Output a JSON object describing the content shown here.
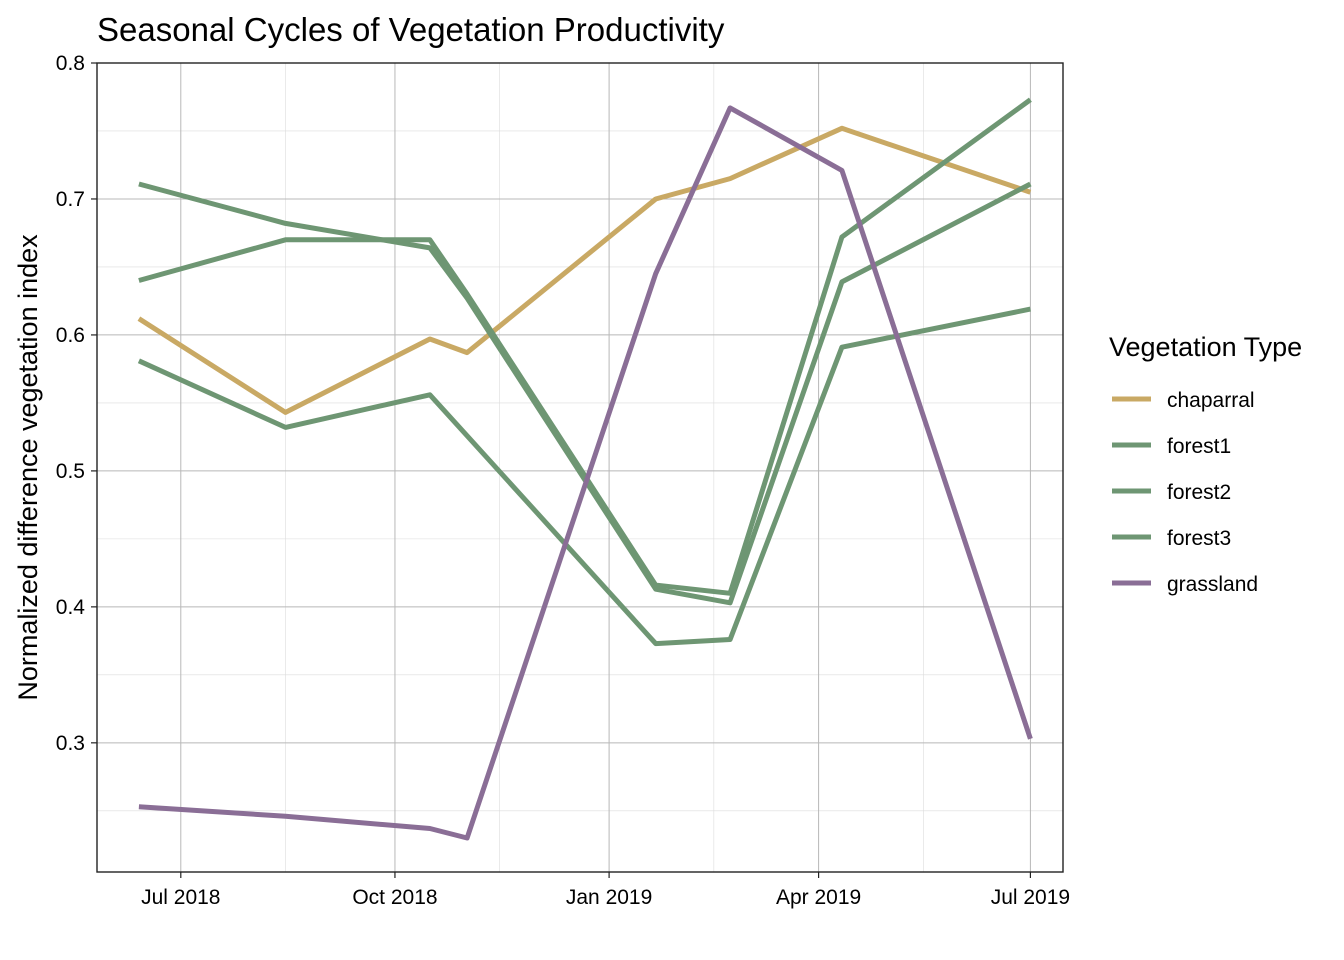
{
  "chart_data": {
    "type": "line",
    "title": "Seasonal Cycles of Vegetation Productivity",
    "xlabel": "",
    "ylabel": "Normalized difference vegetation index",
    "x_axis_type": "date",
    "xlim": [
      "2018-05-26",
      "2019-07-15"
    ],
    "ylim": [
      0.205,
      0.8
    ],
    "x_ticks": [
      {
        "date": "2018-07-01",
        "label": "Jul 2018"
      },
      {
        "date": "2018-10-01",
        "label": "Oct 2018"
      },
      {
        "date": "2019-01-01",
        "label": "Jan 2019"
      },
      {
        "date": "2019-04-01",
        "label": "Apr 2019"
      },
      {
        "date": "2019-07-01",
        "label": "Jul 2019"
      }
    ],
    "x_minor_ticks": [
      "2018-08-15",
      "2018-11-15",
      "2019-02-15",
      "2019-05-16"
    ],
    "y_ticks": [
      0.3,
      0.4,
      0.5,
      0.6,
      0.7,
      0.8
    ],
    "y_minor_ticks": [
      0.25,
      0.35,
      0.45,
      0.55,
      0.65,
      0.75
    ],
    "grid": true,
    "legend": {
      "title": "Vegetation Type",
      "position": "right"
    },
    "series": [
      {
        "name": "chaparral",
        "color": "#c9a964",
        "points": [
          {
            "x": "2018-06-13",
            "y": 0.612
          },
          {
            "x": "2018-08-15",
            "y": 0.543
          },
          {
            "x": "2018-10-16",
            "y": 0.597
          },
          {
            "x": "2018-11-01",
            "y": 0.587
          },
          {
            "x": "2019-01-21",
            "y": 0.7
          },
          {
            "x": "2019-02-22",
            "y": 0.715
          },
          {
            "x": "2019-04-11",
            "y": 0.752
          },
          {
            "x": "2019-07-01",
            "y": 0.705
          }
        ]
      },
      {
        "name": "forest1",
        "color": "#6e9673",
        "points": [
          {
            "x": "2018-06-13",
            "y": 0.711
          },
          {
            "x": "2018-08-15",
            "y": 0.682
          },
          {
            "x": "2018-10-16",
            "y": 0.664
          },
          {
            "x": "2018-11-01",
            "y": 0.627
          },
          {
            "x": "2019-01-21",
            "y": 0.413
          },
          {
            "x": "2019-02-22",
            "y": 0.403
          },
          {
            "x": "2019-04-11",
            "y": 0.639
          },
          {
            "x": "2019-07-01",
            "y": 0.711
          }
        ]
      },
      {
        "name": "forest2",
        "color": "#6e9673",
        "points": [
          {
            "x": "2018-06-13",
            "y": 0.64
          },
          {
            "x": "2018-08-15",
            "y": 0.67
          },
          {
            "x": "2018-10-16",
            "y": 0.67
          },
          {
            "x": "2018-11-01",
            "y": 0.63
          },
          {
            "x": "2019-01-21",
            "y": 0.416
          },
          {
            "x": "2019-02-22",
            "y": 0.41
          },
          {
            "x": "2019-04-11",
            "y": 0.672
          },
          {
            "x": "2019-07-01",
            "y": 0.773
          }
        ]
      },
      {
        "name": "forest3",
        "color": "#6e9673",
        "points": [
          {
            "x": "2018-06-13",
            "y": 0.581
          },
          {
            "x": "2018-08-15",
            "y": 0.532
          },
          {
            "x": "2018-10-16",
            "y": 0.556
          },
          {
            "x": "2019-01-21",
            "y": 0.373
          },
          {
            "x": "2019-02-22",
            "y": 0.376
          },
          {
            "x": "2019-04-11",
            "y": 0.591
          },
          {
            "x": "2019-07-01",
            "y": 0.619
          }
        ]
      },
      {
        "name": "grassland",
        "color": "#8a6e96",
        "points": [
          {
            "x": "2018-06-13",
            "y": 0.253
          },
          {
            "x": "2018-08-15",
            "y": 0.246
          },
          {
            "x": "2018-10-16",
            "y": 0.237
          },
          {
            "x": "2018-11-01",
            "y": 0.23
          },
          {
            "x": "2019-01-21",
            "y": 0.645
          },
          {
            "x": "2019-02-22",
            "y": 0.767
          },
          {
            "x": "2019-04-11",
            "y": 0.721
          },
          {
            "x": "2019-07-01",
            "y": 0.303
          }
        ]
      }
    ]
  }
}
